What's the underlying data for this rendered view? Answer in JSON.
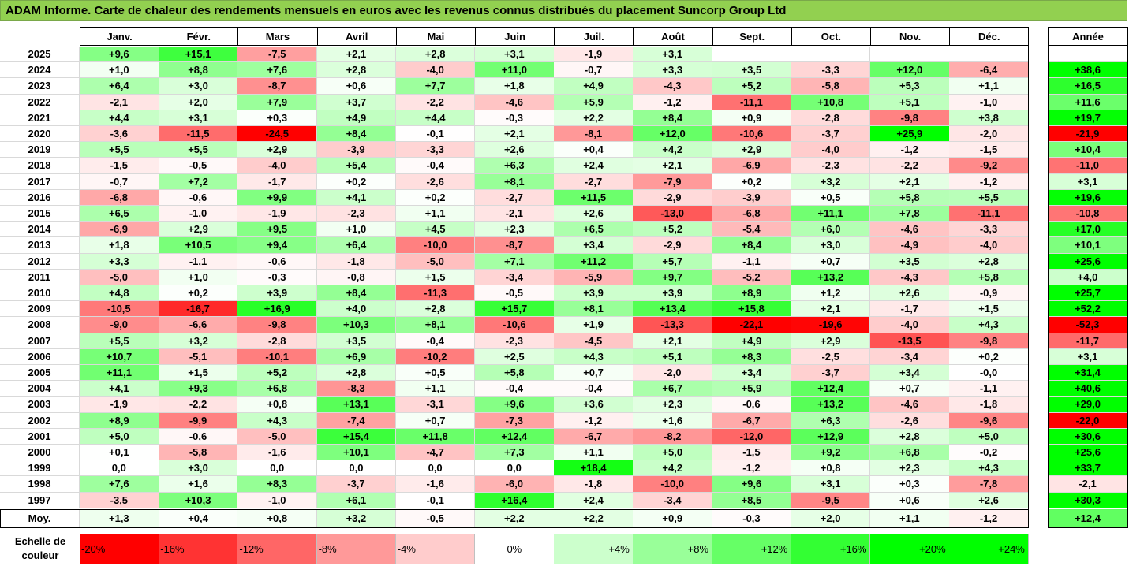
{
  "title": "ADAM Informe. Carte de chaleur des rendements mensuels en euros avec les revenus connus distribués du placement Suncorp Group Ltd",
  "chart_data": {
    "type": "heatmap",
    "columns": [
      "Janv.",
      "Févr.",
      "Mars",
      "Avril",
      "Mai",
      "Juin",
      "Juil.",
      "Août",
      "Sept.",
      "Oct.",
      "Nov.",
      "Déc."
    ],
    "year_column_label": "Année",
    "rows": [
      {
        "year": "2025",
        "months": [
          "+9,6",
          "+15,1",
          "-7,5",
          "+2,1",
          "+2,8",
          "+3,1",
          "-1,9",
          "+3,1",
          "",
          "",
          "",
          ""
        ],
        "annual": ""
      },
      {
        "year": "2024",
        "months": [
          "+1,0",
          "+8,8",
          "+7,6",
          "+2,8",
          "-4,0",
          "+11,0",
          "-0,7",
          "+3,3",
          "+3,5",
          "-3,3",
          "+12,0",
          "-6,4"
        ],
        "annual": "+38,6"
      },
      {
        "year": "2023",
        "months": [
          "+6,4",
          "+3,0",
          "-8,7",
          "+0,6",
          "+7,7",
          "+1,8",
          "+4,9",
          "-4,3",
          "+5,2",
          "-5,8",
          "+5,3",
          "+1,1"
        ],
        "annual": "+16,5"
      },
      {
        "year": "2022",
        "months": [
          "-2,1",
          "+2,0",
          "+7,9",
          "+3,7",
          "-2,2",
          "-4,6",
          "+5,9",
          "-1,2",
          "-11,1",
          "+10,8",
          "+5,1",
          "-1,0"
        ],
        "annual": "+11,6"
      },
      {
        "year": "2021",
        "months": [
          "+4,4",
          "+3,1",
          "+0,3",
          "+4,9",
          "+4,4",
          "-0,3",
          "+2,2",
          "+8,4",
          "+0,9",
          "-2,8",
          "-9,8",
          "+3,8"
        ],
        "annual": "+19,7"
      },
      {
        "year": "2020",
        "months": [
          "-3,6",
          "-11,5",
          "-24,5",
          "+8,4",
          "-0,1",
          "+2,1",
          "-8,1",
          "+12,0",
          "-10,6",
          "-3,7",
          "+25,9",
          "-2,0"
        ],
        "annual": "-21,9"
      },
      {
        "year": "2019",
        "months": [
          "+5,5",
          "+5,5",
          "+2,9",
          "-3,9",
          "-3,3",
          "+2,6",
          "+0,4",
          "+4,2",
          "+2,9",
          "-4,0",
          "-1,2",
          "-1,5"
        ],
        "annual": "+10,4"
      },
      {
        "year": "2018",
        "months": [
          "-1,5",
          "-0,5",
          "-4,0",
          "+5,4",
          "-0,4",
          "+6,3",
          "+2,4",
          "+2,1",
          "-6,9",
          "-2,3",
          "-2,2",
          "-9,2"
        ],
        "annual": "-11,0"
      },
      {
        "year": "2017",
        "months": [
          "-0,7",
          "+7,2",
          "-1,7",
          "+0,2",
          "-2,6",
          "+8,1",
          "-2,7",
          "-7,9",
          "+0,2",
          "+3,2",
          "+2,1",
          "-1,2"
        ],
        "annual": "+3,1"
      },
      {
        "year": "2016",
        "months": [
          "-6,8",
          "-0,6",
          "+9,9",
          "+4,1",
          "+0,2",
          "-2,7",
          "+11,5",
          "-2,9",
          "-3,9",
          "+0,5",
          "+5,8",
          "+5,5"
        ],
        "annual": "+19,6"
      },
      {
        "year": "2015",
        "months": [
          "+6,5",
          "-1,0",
          "-1,9",
          "-2,3",
          "+1,1",
          "-2,1",
          "+2,6",
          "-13,0",
          "-6,8",
          "+11,1",
          "+7,8",
          "-11,1"
        ],
        "annual": "-10,8"
      },
      {
        "year": "2014",
        "months": [
          "-6,9",
          "+2,9",
          "+9,5",
          "+1,0",
          "+4,5",
          "+2,3",
          "+6,5",
          "+5,2",
          "-5,4",
          "+6,0",
          "-4,6",
          "-3,3"
        ],
        "annual": "+17,0"
      },
      {
        "year": "2013",
        "months": [
          "+1,8",
          "+10,5",
          "+9,4",
          "+6,4",
          "-10,0",
          "-8,7",
          "+3,4",
          "-2,9",
          "+8,4",
          "+3,0",
          "-4,9",
          "-4,0"
        ],
        "annual": "+10,1"
      },
      {
        "year": "2012",
        "months": [
          "+3,3",
          "-1,1",
          "-0,6",
          "-1,8",
          "-5,0",
          "+7,1",
          "+11,2",
          "+5,7",
          "-1,1",
          "+0,7",
          "+3,5",
          "+2,8"
        ],
        "annual": "+25,6"
      },
      {
        "year": "2011",
        "months": [
          "-5,0",
          "+1,0",
          "-0,3",
          "-0,8",
          "+1,5",
          "-3,4",
          "-5,9",
          "+9,7",
          "-5,2",
          "+13,2",
          "-4,3",
          "+5,8"
        ],
        "annual": "+4,0"
      },
      {
        "year": "2010",
        "months": [
          "+4,8",
          "+0,2",
          "+3,9",
          "+8,4",
          "-11,3",
          "-0,5",
          "+3,9",
          "+3,9",
          "+8,9",
          "+1,2",
          "+2,6",
          "-0,9"
        ],
        "annual": "+25,7"
      },
      {
        "year": "2009",
        "months": [
          "-10,5",
          "-16,7",
          "+16,9",
          "+4,0",
          "+2,8",
          "+15,7",
          "+8,1",
          "+13,4",
          "+15,8",
          "+2,1",
          "-1,7",
          "+1,5"
        ],
        "annual": "+52,2"
      },
      {
        "year": "2008",
        "months": [
          "-9,0",
          "-6,6",
          "-9,8",
          "+10,3",
          "+8,1",
          "-10,6",
          "+1,9",
          "-13,3",
          "-22,1",
          "-19,6",
          "-4,0",
          "+4,3"
        ],
        "annual": "-52,3"
      },
      {
        "year": "2007",
        "months": [
          "+5,5",
          "+3,2",
          "-2,8",
          "+3,5",
          "-0,4",
          "-2,3",
          "-4,5",
          "+2,1",
          "+4,9",
          "+2,9",
          "-13,5",
          "-9,8"
        ],
        "annual": "-11,7"
      },
      {
        "year": "2006",
        "months": [
          "+10,7",
          "-5,1",
          "-10,1",
          "+6,9",
          "-10,2",
          "+2,5",
          "+4,3",
          "+5,1",
          "+8,3",
          "-2,5",
          "-3,4",
          "+0,2"
        ],
        "annual": "+3,1"
      },
      {
        "year": "2005",
        "months": [
          "+11,1",
          "+1,5",
          "+5,2",
          "+2,8",
          "+0,5",
          "+5,8",
          "+0,7",
          "-2,0",
          "+3,4",
          "-3,7",
          "+3,4",
          "-0,0"
        ],
        "annual": "+31,4"
      },
      {
        "year": "2004",
        "months": [
          "+4,1",
          "+9,3",
          "+6,8",
          "-8,3",
          "+1,1",
          "-0,4",
          "-0,4",
          "+6,7",
          "+5,9",
          "+12,4",
          "+0,7",
          "-1,1"
        ],
        "annual": "+40,6"
      },
      {
        "year": "2003",
        "months": [
          "-1,9",
          "-2,2",
          "+0,8",
          "+13,1",
          "-3,1",
          "+9,6",
          "+3,6",
          "+2,3",
          "-0,6",
          "+13,2",
          "-4,6",
          "-1,8"
        ],
        "annual": "+29,0"
      },
      {
        "year": "2002",
        "months": [
          "+8,9",
          "-9,9",
          "+4,3",
          "-7,4",
          "+0,7",
          "-7,3",
          "-1,2",
          "+1,6",
          "-6,7",
          "+6,3",
          "-2,6",
          "-9,6"
        ],
        "annual": "-22,0"
      },
      {
        "year": "2001",
        "months": [
          "+5,0",
          "-0,6",
          "-5,0",
          "+15,4",
          "+11,8",
          "+12,4",
          "-6,7",
          "-8,2",
          "-12,0",
          "+12,9",
          "+2,8",
          "+5,0"
        ],
        "annual": "+30,6"
      },
      {
        "year": "2000",
        "months": [
          "+0,1",
          "-5,8",
          "-1,6",
          "+10,1",
          "-4,7",
          "+7,3",
          "+1,1",
          "+5,0",
          "-1,5",
          "+9,2",
          "+6,8",
          "-0,2"
        ],
        "annual": "+25,6"
      },
      {
        "year": "1999",
        "months": [
          "0,0",
          "+3,0",
          "0,0",
          "0,0",
          "0,0",
          "0,0",
          "+18,4",
          "+4,2",
          "-1,2",
          "+0,8",
          "+2,3",
          "+4,3"
        ],
        "annual": "+33,7"
      },
      {
        "year": "1998",
        "months": [
          "+7,6",
          "+1,6",
          "+8,3",
          "-3,7",
          "-1,6",
          "-6,0",
          "-1,8",
          "-10,0",
          "+9,6",
          "+3,1",
          "+0,3",
          "-7,8"
        ],
        "annual": "-2,1"
      },
      {
        "year": "1997",
        "months": [
          "-3,5",
          "+10,3",
          "-1,0",
          "+6,1",
          "-0,1",
          "+16,4",
          "+2,4",
          "-3,4",
          "+8,5",
          "-9,5",
          "+0,6",
          "+2,6"
        ],
        "annual": "+30,3"
      }
    ],
    "average": {
      "label": "Moy.",
      "months": [
        "+1,3",
        "+0,4",
        "+0,8",
        "+3,2",
        "-0,5",
        "+2,2",
        "+2,2",
        "+0,9",
        "-0,3",
        "+2,0",
        "+1,1",
        "-1,2"
      ],
      "annual": "+12,4"
    },
    "legend": {
      "label_line1": "Echelle de",
      "label_line2": "couleur",
      "steps": [
        {
          "label": "-20%",
          "value": -20
        },
        {
          "label": "-16%",
          "value": -16
        },
        {
          "label": "-12%",
          "value": -12
        },
        {
          "label": "-8%",
          "value": -8
        },
        {
          "label": "-4%",
          "value": -4
        },
        {
          "label": "0%",
          "value": 0
        },
        {
          "label": "+4%",
          "value": 4
        },
        {
          "label": "+8%",
          "value": 8
        },
        {
          "label": "+12%",
          "value": 12
        },
        {
          "label": "+16%",
          "value": 16
        },
        {
          "label": "+20%",
          "value": 20
        },
        {
          "label": "+24%",
          "value": 24
        }
      ]
    },
    "colors": {
      "negative_max": "#ff0000",
      "zero": "#ffffff",
      "positive_max": "#00ff00"
    }
  }
}
